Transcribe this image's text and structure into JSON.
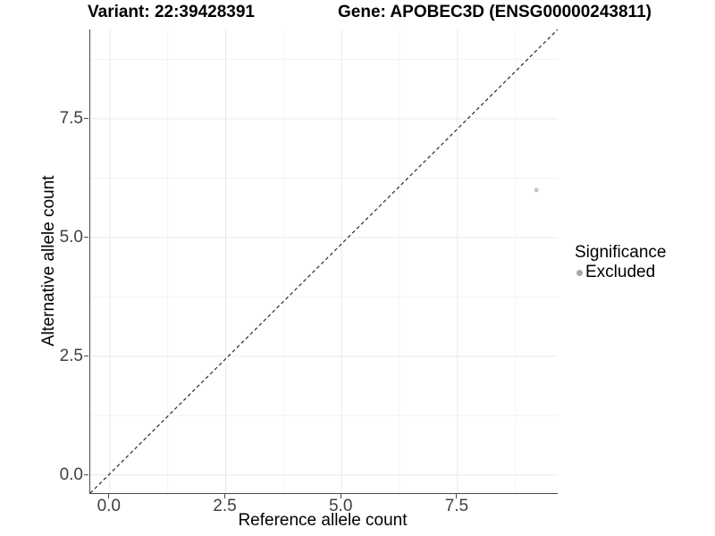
{
  "colors": {
    "background": "#ffffff",
    "axis_line": "#4a4a4a",
    "tick_label": "#404040",
    "grid_major": "#e9e9e9",
    "grid_minor": "#f3f3f3",
    "title_text": "#000000"
  },
  "chart_data": {
    "type": "scatter",
    "titles": {
      "variant": "Variant: 22:39428391",
      "gene": "Gene: APOBEC3D (ENSG00000243811)"
    },
    "xlabel": "Reference allele count",
    "ylabel": "Alternative allele count",
    "xlim": [
      -0.42,
      9.66
    ],
    "ylim": [
      -0.38,
      9.38
    ],
    "x_ticks": [
      0,
      2.5,
      5,
      7.5
    ],
    "x_tick_labels": [
      "0.0",
      "2.5",
      "5.0",
      "7.5"
    ],
    "y_ticks": [
      0,
      2.5,
      5,
      7.5
    ],
    "y_tick_labels": [
      "0.0",
      "2.5",
      "5.0",
      "7.5"
    ],
    "x_minor_ticks": [
      1.25,
      3.75,
      6.25,
      8.75
    ],
    "y_minor_ticks": [
      1.25,
      3.75,
      6.25,
      8.75
    ],
    "grid": "major_and_minor",
    "series": [
      {
        "name": "Excluded",
        "color": "#c6c6c6",
        "point_radius": 2.5,
        "points": [
          [
            9.2,
            6.0
          ]
        ]
      }
    ],
    "reference_line": {
      "equation": "y = x",
      "style": "dashed",
      "color": "#2a2a2a"
    },
    "legend": {
      "title": "Significance",
      "position": "right",
      "entries": [
        {
          "label": "Excluded",
          "color": "#a8a8a8"
        }
      ]
    }
  }
}
